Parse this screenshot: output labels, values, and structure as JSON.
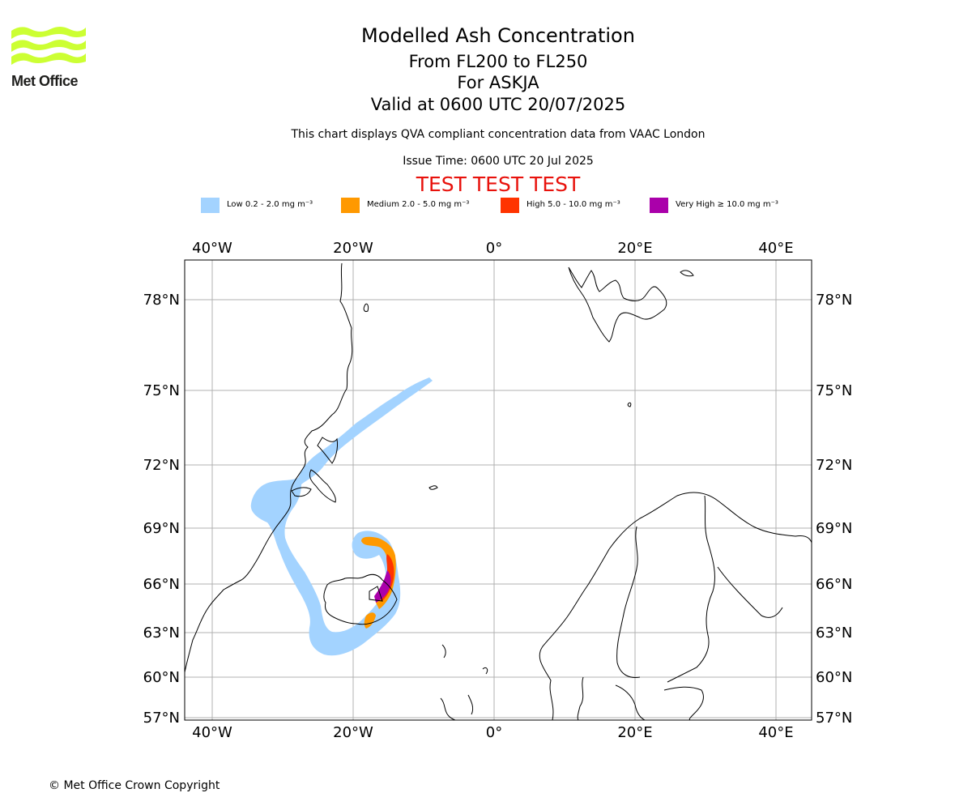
{
  "logo": {
    "text": "Met Office",
    "color": "#ccff33"
  },
  "title": {
    "main": "Modelled Ash Concentration",
    "levels": "From FL200 to FL250",
    "volcano": "For ASKJA",
    "valid": "Valid at 0600 UTC 20/07/2025",
    "description": "This chart displays QVA compliant concentration data from VAAC London",
    "issue": "Issue Time: 0600 UTC 20 Jul 2025",
    "test_banner": "TEST TEST TEST"
  },
  "legend": [
    {
      "label": "Low 0.2 - 2.0 mg m⁻³",
      "color": "#a3d3ff"
    },
    {
      "label": "Medium 2.0 - 5.0 mg m⁻³",
      "color": "#ff9900"
    },
    {
      "label": "High 5.0 - 10.0 mg m⁻³",
      "color": "#ff3300"
    },
    {
      "label": "Very High ≥ 10.0 mg m⁻³",
      "color": "#aa00aa"
    }
  ],
  "axes": {
    "lon_labels": [
      "40°W",
      "20°W",
      "0°",
      "20°E",
      "40°E"
    ],
    "lat_labels": [
      "78°N",
      "75°N",
      "72°N",
      "69°N",
      "66°N",
      "63°N",
      "60°N",
      "57°N"
    ]
  },
  "footer": {
    "copyright": "© Met Office Crown Copyright"
  }
}
